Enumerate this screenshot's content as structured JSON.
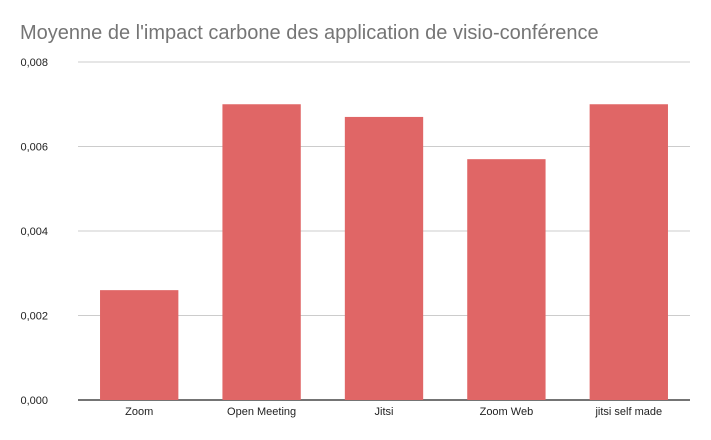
{
  "chart_data": {
    "type": "bar",
    "title": "Moyenne de l'impact carbone des application de visio-conférence",
    "xlabel": "",
    "ylabel": "",
    "categories": [
      "Zoom",
      "Open Meeting",
      "Jitsi",
      "Zoom Web",
      "jitsi self made"
    ],
    "values": [
      0.0026,
      0.007,
      0.0067,
      0.0057,
      0.007
    ],
    "ylim": [
      0,
      0.008
    ],
    "yticks": [
      0,
      0.002,
      0.004,
      0.006,
      0.008
    ],
    "ytick_labels": [
      "0,000",
      "0,002",
      "0,004",
      "0,006",
      "0,008"
    ],
    "grid": true,
    "legend": "none",
    "colors": {
      "bar": "#e06666",
      "grid": "#cccccc",
      "axis": "#222222"
    }
  }
}
